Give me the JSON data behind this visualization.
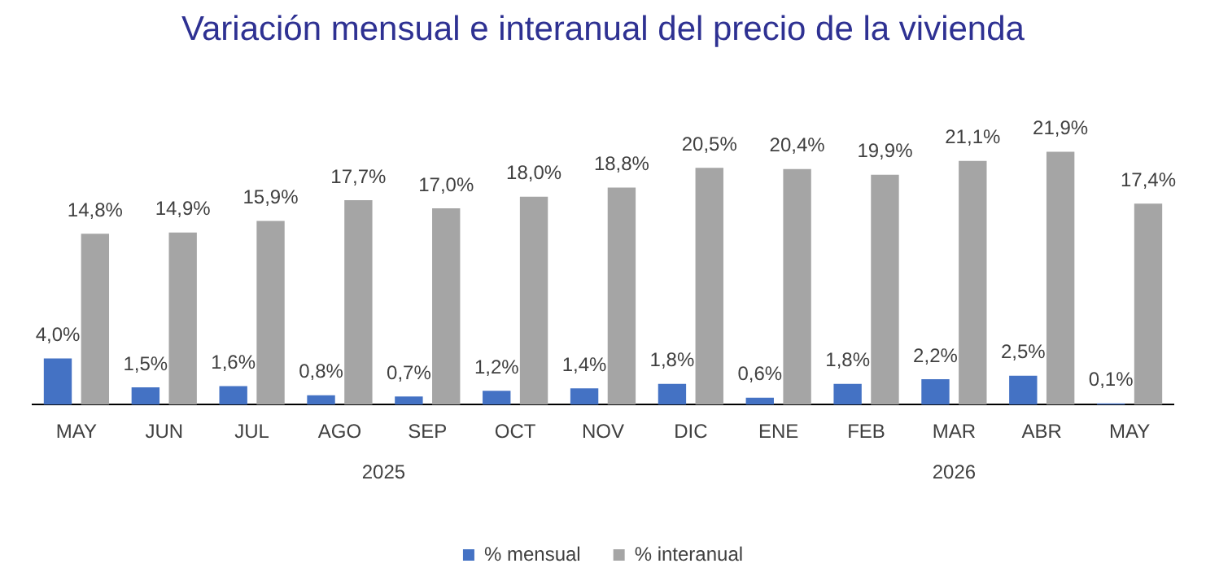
{
  "chart_data": {
    "type": "bar",
    "title": "Variación mensual e interanual del precio de la vivienda",
    "categories": [
      "MAY",
      "JUN",
      "JUL",
      "AGO",
      "SEP",
      "OCT",
      "NOV",
      "DIC",
      "ENE",
      "FEB",
      "MAR",
      "ABR",
      "MAY"
    ],
    "series": [
      {
        "name": "% mensual",
        "color": "#4472c4",
        "values": [
          4.0,
          1.5,
          1.6,
          0.8,
          0.7,
          1.2,
          1.4,
          1.8,
          0.6,
          1.8,
          2.2,
          2.5,
          0.1
        ],
        "value_labels": [
          "4,0%",
          "1,5%",
          "1,6%",
          "0,8%",
          "0,7%",
          "1,2%",
          "1,4%",
          "1,8%",
          "0,6%",
          "1,8%",
          "2,2%",
          "2,5%",
          "0,1%"
        ]
      },
      {
        "name": "% interanual",
        "color": "#a5a5a5",
        "values": [
          14.8,
          14.9,
          15.9,
          17.7,
          17.0,
          18.0,
          18.8,
          20.5,
          20.4,
          19.9,
          21.1,
          21.9,
          17.4
        ],
        "value_labels": [
          "14,8%",
          "14,9%",
          "15,9%",
          "17,7%",
          "17,0%",
          "18,0%",
          "18,8%",
          "20,5%",
          "20,4%",
          "19,9%",
          "21,1%",
          "21,9%",
          "17,4%"
        ]
      }
    ],
    "annotations": [
      "2025",
      "2026"
    ],
    "legend": "bottom",
    "grid": false
  }
}
